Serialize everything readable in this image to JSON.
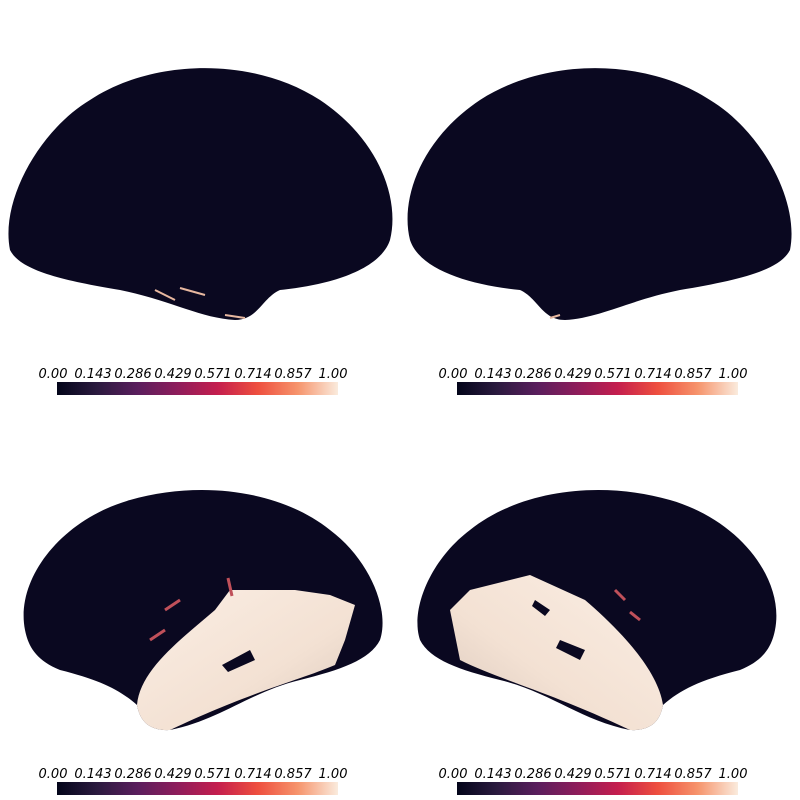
{
  "panels": [
    {
      "colorbar": {
        "ticks": [
          "0.00",
          "0.143",
          "0.286",
          "0.429",
          "0.571",
          "0.714",
          "0.857",
          "1.00"
        ]
      }
    },
    {
      "colorbar": {
        "ticks": [
          "0.00",
          "0.143",
          "0.286",
          "0.429",
          "0.571",
          "0.714",
          "0.857",
          "1.00"
        ]
      }
    },
    {
      "colorbar": {
        "ticks": [
          "0.00",
          "0.143",
          "0.286",
          "0.429",
          "0.571",
          "0.714",
          "0.857",
          "1.00"
        ]
      }
    },
    {
      "colorbar": {
        "ticks": [
          "0.00",
          "0.143",
          "0.286",
          "0.429",
          "0.571",
          "0.714",
          "0.857",
          "1.00"
        ]
      }
    }
  ]
}
